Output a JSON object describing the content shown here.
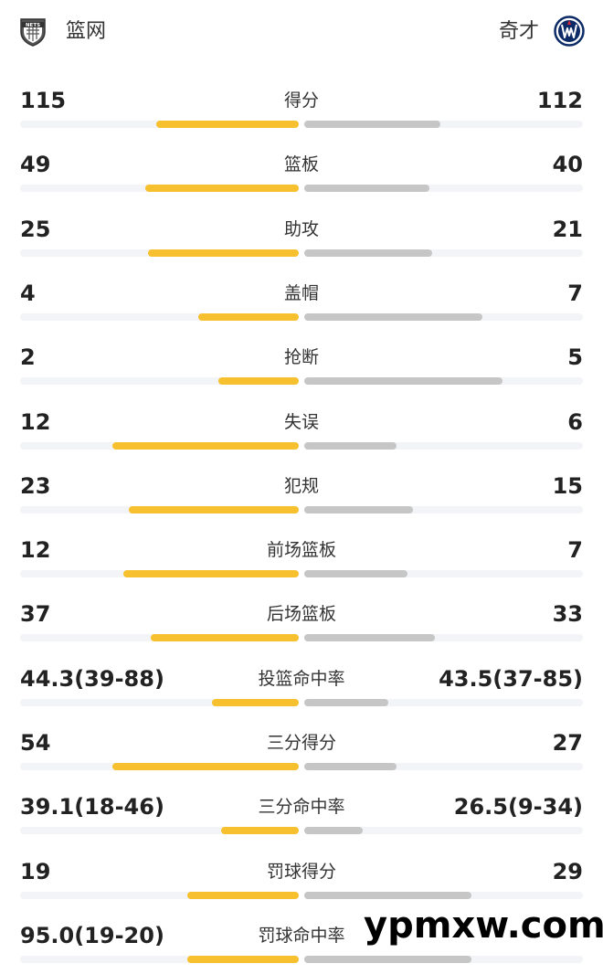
{
  "header": {
    "home_team": "篮网",
    "away_team": "奇才",
    "home_logo_text": "NETS"
  },
  "colors": {
    "home_bar": "#f6c02e",
    "away_bar": "#c6c6c6",
    "track": "#f3f4f7",
    "wizards_blue": "#0c2b66",
    "wizards_red": "#d6253a"
  },
  "stats": [
    {
      "label": "得分",
      "home": "115",
      "away": "112",
      "home_share": 0.51,
      "away_share": 0.49
    },
    {
      "label": "篮板",
      "home": "49",
      "away": "40",
      "home_share": 0.55,
      "away_share": 0.45
    },
    {
      "label": "助攻",
      "home": "25",
      "away": "21",
      "home_share": 0.54,
      "away_share": 0.46
    },
    {
      "label": "盖帽",
      "home": "4",
      "away": "7",
      "home_share": 0.36,
      "away_share": 0.64
    },
    {
      "label": "抢断",
      "home": "2",
      "away": "5",
      "home_share": 0.29,
      "away_share": 0.71
    },
    {
      "label": "失误",
      "home": "12",
      "away": "6",
      "home_share": 0.67,
      "away_share": 0.33
    },
    {
      "label": "犯规",
      "home": "23",
      "away": "15",
      "home_share": 0.61,
      "away_share": 0.39
    },
    {
      "label": "前场篮板",
      "home": "12",
      "away": "7",
      "home_share": 0.63,
      "away_share": 0.37
    },
    {
      "label": "后场篮板",
      "home": "37",
      "away": "33",
      "home_share": 0.53,
      "away_share": 0.47
    },
    {
      "label": "投篮命中率",
      "home": "44.3(39-88)",
      "away": "43.5(37-85)",
      "home_share": 0.31,
      "away_share": 0.3
    },
    {
      "label": "三分得分",
      "home": "54",
      "away": "27",
      "home_share": 0.67,
      "away_share": 0.33
    },
    {
      "label": "三分命中率",
      "home": "39.1(18-46)",
      "away": "26.5(9-34)",
      "home_share": 0.28,
      "away_share": 0.21
    },
    {
      "label": "罚球得分",
      "home": "19",
      "away": "29",
      "home_share": 0.4,
      "away_share": 0.6
    },
    {
      "label": "罚球命中率",
      "home": "95.0(19-20)",
      "away": "",
      "home_share": 0.4,
      "away_share": 0.6
    }
  ],
  "watermark": "ypmxw.com"
}
